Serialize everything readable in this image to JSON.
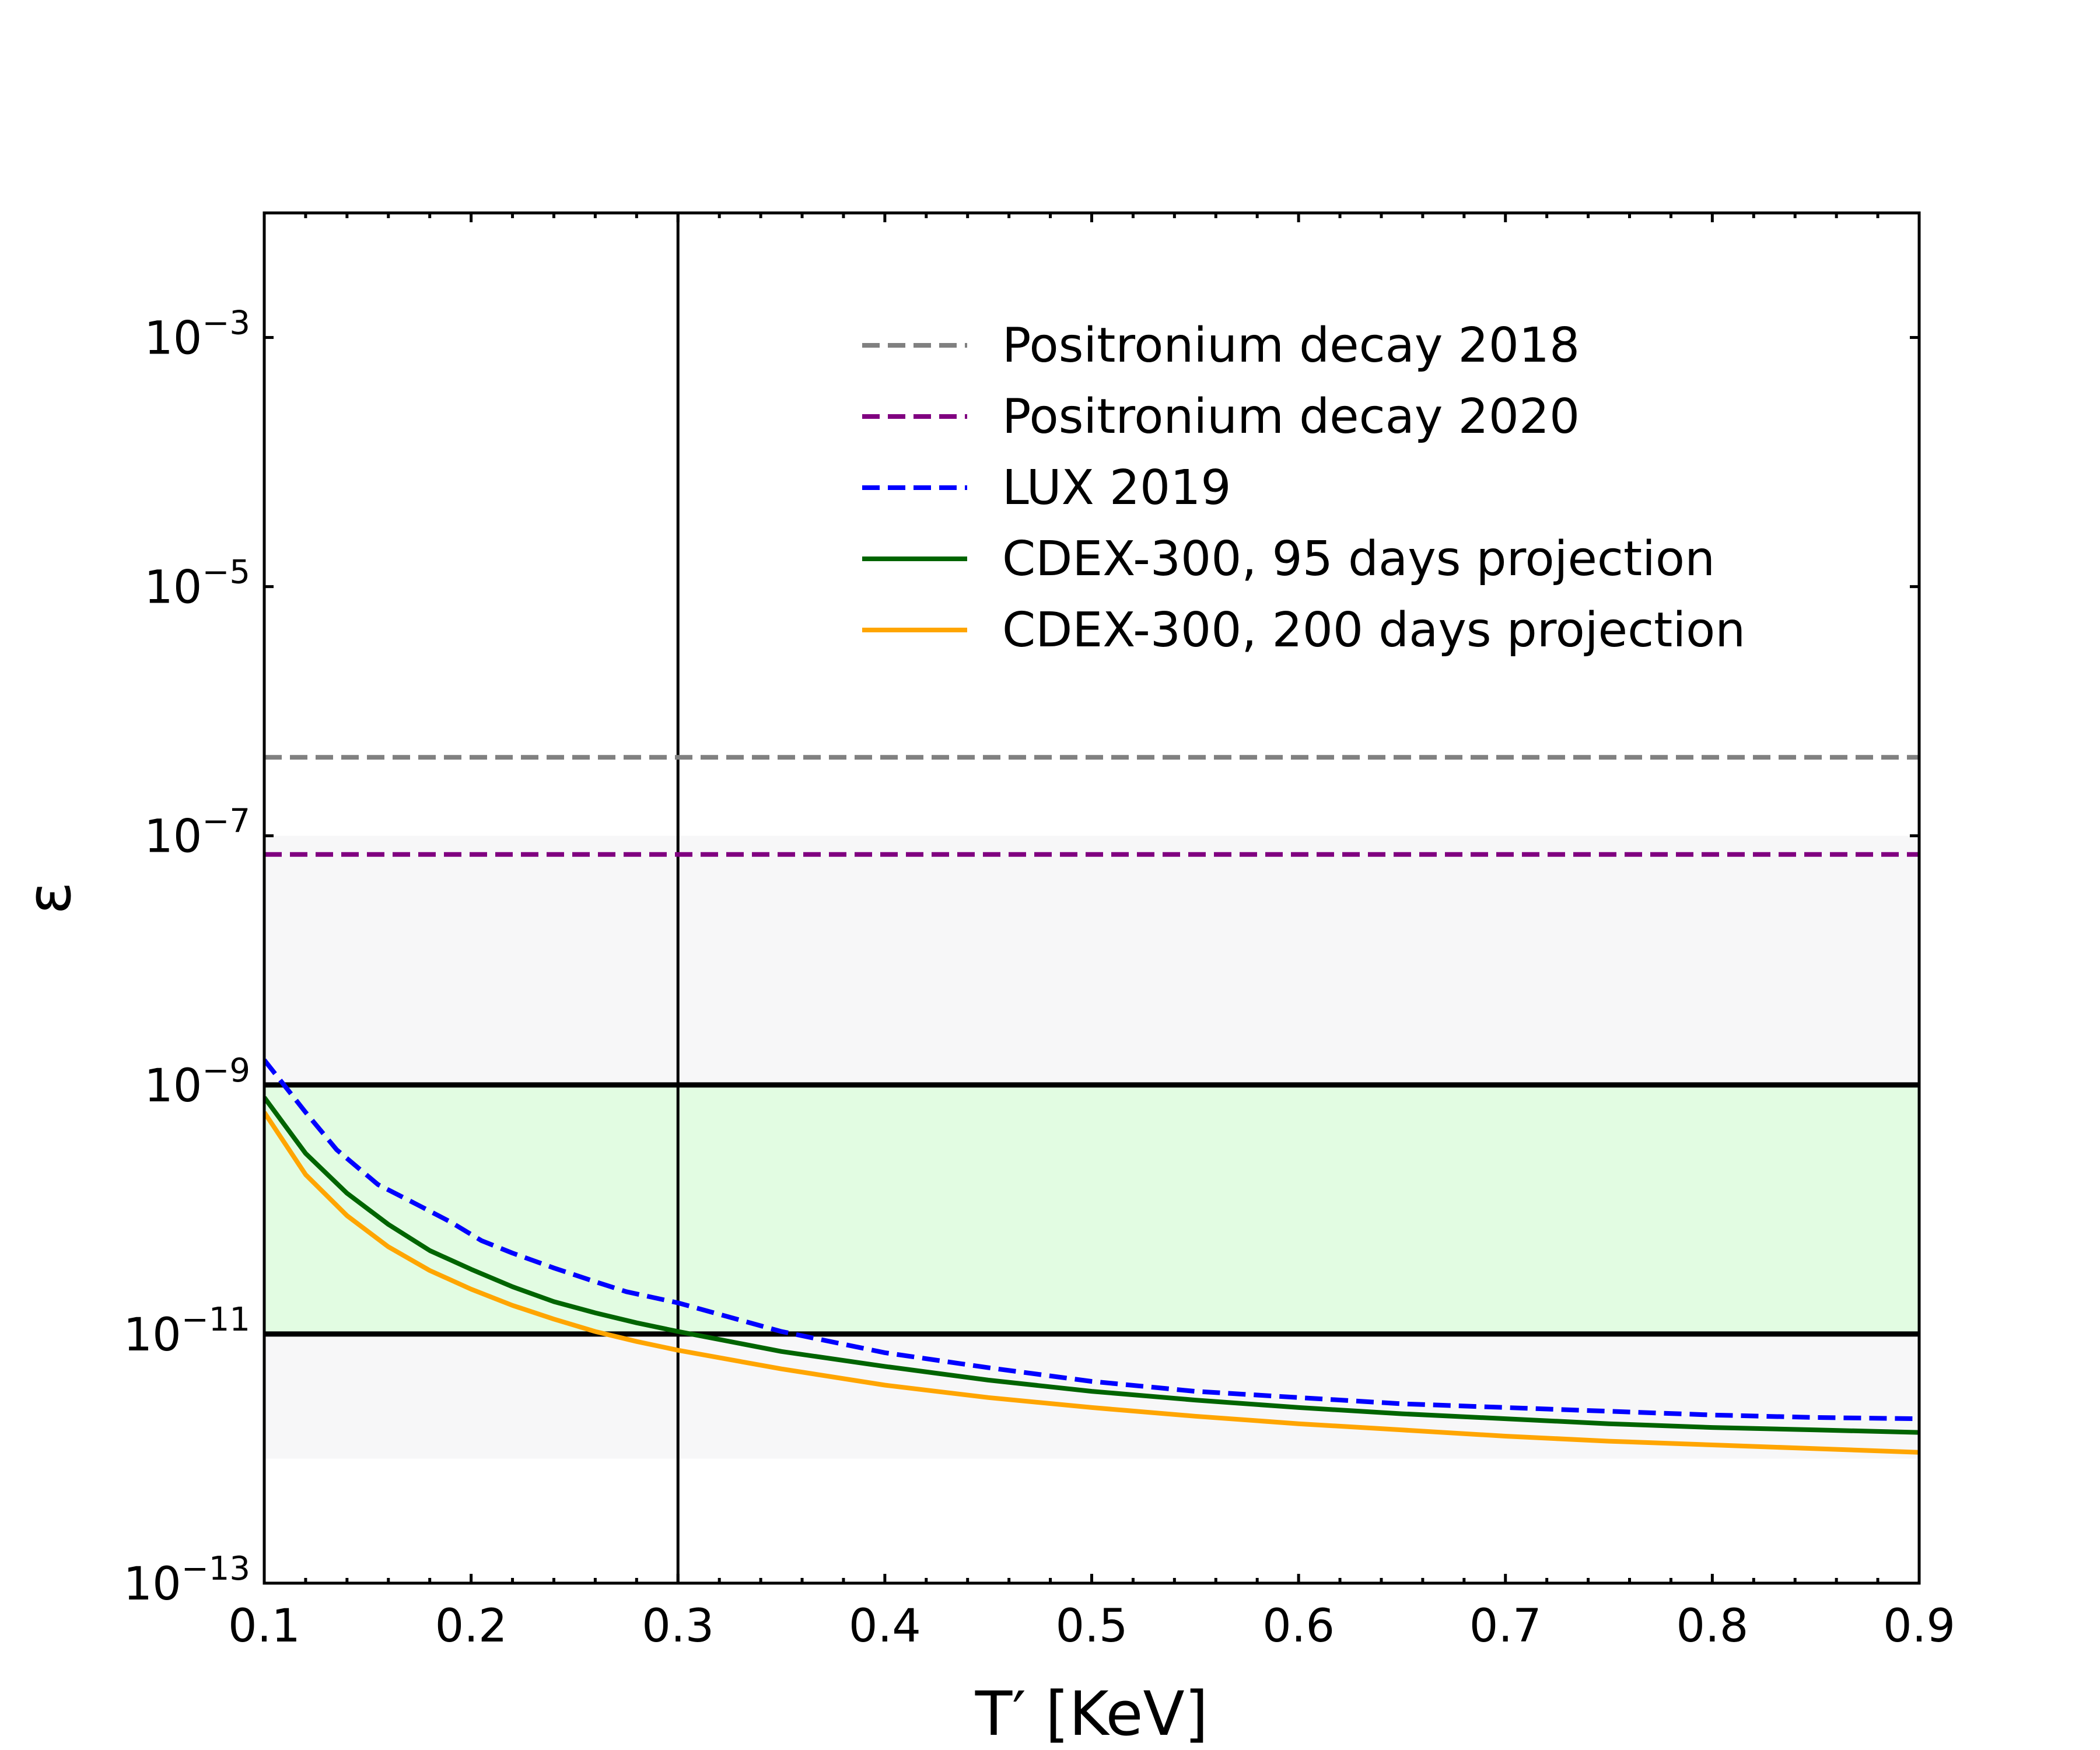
{
  "chart_data": {
    "type": "line",
    "xlabel": "T′ [KeV]",
    "ylabel": "ε",
    "xlim": [
      0.1,
      0.9
    ],
    "ylim_log10": [
      -13,
      -2
    ],
    "x_ticks": [
      0.1,
      0.2,
      0.3,
      0.4,
      0.5,
      0.6,
      0.7,
      0.8,
      0.9
    ],
    "x_tick_labels": [
      "0.1",
      "0.2",
      "0.3",
      "0.4",
      "0.5",
      "0.6",
      "0.7",
      "0.8",
      "0.9"
    ],
    "y_ticks_log10": [
      -13,
      -11,
      -9,
      -7,
      -5,
      -3
    ],
    "y_tick_labels": [
      {
        "base": "10",
        "exp": "−13"
      },
      {
        "base": "10",
        "exp": "−11"
      },
      {
        "base": "10",
        "exp": "−9"
      },
      {
        "base": "10",
        "exp": "−7"
      },
      {
        "base": "10",
        "exp": "−5"
      },
      {
        "base": "10",
        "exp": "−3"
      }
    ],
    "shaded_bands": [
      {
        "name": "gray-band",
        "y_log10": [
          -12,
          -7
        ],
        "color": "#f7f7f8"
      },
      {
        "name": "green-band",
        "y_log10": [
          -11,
          -9
        ],
        "color": "#e2fce2"
      }
    ],
    "hlines": [
      {
        "name": "bound-upper",
        "y_log10": -9,
        "color": "#000000"
      },
      {
        "name": "bound-lower",
        "y_log10": -11,
        "color": "#000000"
      }
    ],
    "vlines": [
      {
        "name": "threshold-line",
        "x": 0.3,
        "color": "#000000"
      }
    ],
    "series": [
      {
        "name": "Positronium decay 2018",
        "color": "#808080",
        "dash": true,
        "x": [
          0.1,
          0.9
        ],
        "y_log10": [
          -6.37,
          -6.37
        ]
      },
      {
        "name": "Positronium decay 2020",
        "color": "#800080",
        "dash": true,
        "x": [
          0.1,
          0.9
        ],
        "y_log10": [
          -7.15,
          -7.15
        ]
      },
      {
        "name": "LUX 2019",
        "color": "#0000ff",
        "dash": true,
        "x": [
          0.1,
          0.12,
          0.135,
          0.155,
          0.175,
          0.19,
          0.205,
          0.22,
          0.24,
          0.26,
          0.275,
          0.3,
          0.35,
          0.4,
          0.45,
          0.5,
          0.55,
          0.6,
          0.65,
          0.7,
          0.75,
          0.8,
          0.85,
          0.9
        ],
        "y_log10": [
          -8.8,
          -9.22,
          -9.52,
          -9.8,
          -9.97,
          -10.1,
          -10.25,
          -10.35,
          -10.47,
          -10.58,
          -10.66,
          -10.75,
          -10.98,
          -11.15,
          -11.27,
          -11.38,
          -11.46,
          -11.51,
          -11.56,
          -11.59,
          -11.62,
          -11.65,
          -11.67,
          -11.68
        ]
      },
      {
        "name": "CDEX-300, 95 days projection",
        "color": "#006400",
        "dash": false,
        "x": [
          0.1,
          0.12,
          0.14,
          0.16,
          0.18,
          0.2,
          0.22,
          0.24,
          0.26,
          0.28,
          0.3,
          0.35,
          0.4,
          0.45,
          0.5,
          0.55,
          0.6,
          0.65,
          0.7,
          0.75,
          0.8,
          0.85,
          0.9
        ],
        "y_log10": [
          -9.1,
          -9.55,
          -9.87,
          -10.12,
          -10.33,
          -10.48,
          -10.62,
          -10.74,
          -10.83,
          -10.91,
          -10.98,
          -11.14,
          -11.26,
          -11.37,
          -11.46,
          -11.53,
          -11.59,
          -11.64,
          -11.68,
          -11.72,
          -11.75,
          -11.77,
          -11.79
        ]
      },
      {
        "name": "CDEX-300, 200 days projection",
        "color": "#ffa500",
        "dash": false,
        "x": [
          0.1,
          0.12,
          0.14,
          0.16,
          0.18,
          0.2,
          0.22,
          0.24,
          0.26,
          0.28,
          0.3,
          0.35,
          0.4,
          0.45,
          0.5,
          0.55,
          0.6,
          0.65,
          0.7,
          0.75,
          0.8,
          0.85,
          0.9
        ],
        "y_log10": [
          -9.22,
          -9.72,
          -10.05,
          -10.3,
          -10.49,
          -10.64,
          -10.77,
          -10.88,
          -10.98,
          -11.06,
          -11.13,
          -11.28,
          -11.41,
          -11.51,
          -11.59,
          -11.66,
          -11.72,
          -11.77,
          -11.82,
          -11.86,
          -11.89,
          -11.92,
          -11.95
        ]
      }
    ],
    "legend": {
      "position": "top-right",
      "entries": [
        {
          "label": "Positronium decay 2018",
          "color": "#808080",
          "dash": true
        },
        {
          "label": "Positronium decay 2020",
          "color": "#800080",
          "dash": true
        },
        {
          "label": "LUX 2019",
          "color": "#0000ff",
          "dash": true
        },
        {
          "label": "CDEX-300, 95 days projection",
          "color": "#006400",
          "dash": false
        },
        {
          "label": "CDEX-300, 200 days projection",
          "color": "#ffa500",
          "dash": false
        }
      ]
    }
  }
}
